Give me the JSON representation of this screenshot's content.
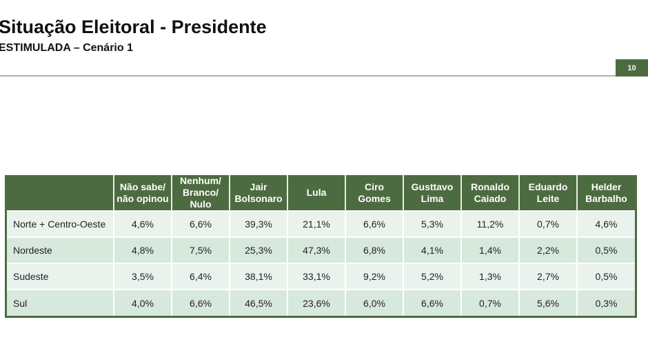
{
  "header": {
    "title": "Situação Eleitoral - Presidente",
    "subtitle": "ESTIMULADA – Cenário 1",
    "page_number": "10"
  },
  "colors": {
    "brand_green": "#4d6b40",
    "rule": "#a9b79c",
    "row_light": "#eaf2ed",
    "row_dark": "#d7e8dc"
  },
  "table": {
    "columns": [
      {
        "line1": "",
        "line2": ""
      },
      {
        "line1": "Não sabe/",
        "line2": "não opinou"
      },
      {
        "line1": "Nenhum/",
        "line2": "Branco/ Nulo"
      },
      {
        "line1": "Jair",
        "line2": "Bolsonaro"
      },
      {
        "line1": "Lula",
        "line2": ""
      },
      {
        "line1": "Ciro",
        "line2": "Gomes"
      },
      {
        "line1": "Gusttavo",
        "line2": "Lima"
      },
      {
        "line1": "Ronaldo",
        "line2": "Caiado"
      },
      {
        "line1": "Eduardo",
        "line2": "Leite"
      },
      {
        "line1": "Helder",
        "line2": "Barbalho"
      }
    ],
    "rows": [
      {
        "region": "Norte + Centro-Oeste",
        "values": [
          "4,6%",
          "6,6%",
          "39,3%",
          "21,1%",
          "6,6%",
          "5,3%",
          "11,2%",
          "0,7%",
          "4,6%"
        ]
      },
      {
        "region": "Nordeste",
        "values": [
          "4,8%",
          "7,5%",
          "25,3%",
          "47,3%",
          "6,8%",
          "4,1%",
          "1,4%",
          "2,2%",
          "0,5%"
        ]
      },
      {
        "region": "Sudeste",
        "values": [
          "3,5%",
          "6,4%",
          "38,1%",
          "33,1%",
          "9,2%",
          "5,2%",
          "1,3%",
          "2,7%",
          "0,5%"
        ]
      },
      {
        "region": "Sul",
        "values": [
          "4,0%",
          "6,6%",
          "46,5%",
          "23,6%",
          "6,0%",
          "6,6%",
          "0,7%",
          "5,6%",
          "0,3%"
        ]
      }
    ]
  }
}
